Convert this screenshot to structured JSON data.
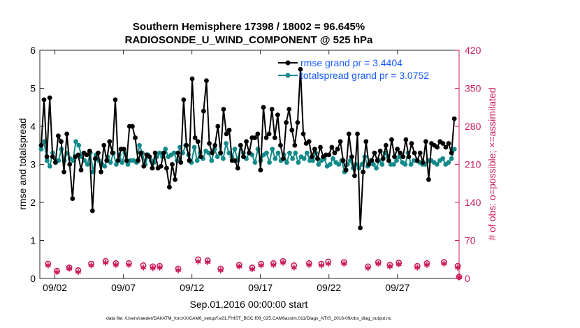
{
  "title_line1": "Southern Hemisphere 17398 / 18002 = 96.645%",
  "title_line2": "RADIOSONDE_U_WIND_COMPONENT @ 525 hPa",
  "xlabel": "Sep.01,2016 00:00:00 start",
  "ylabel_left": "rmse and totalspread",
  "ylabel_right": "# of obs: o=possible; ×=assimilated",
  "footer": "data file: /Users/raeder/DAI/ATM_forcXX/CAM6_setup/f.e21.FHIST_BGC.f09_025.CAM6assim.011/Diags_NTrS_2016-09/obs_diag_output.nc",
  "colors": {
    "rmse": "#000000",
    "spread": "#138a8a",
    "obs": "#cc1a5a",
    "legend_text": "#1a5cff"
  },
  "chart_data": {
    "type": "line",
    "x_unit": "days since Sep.01,2016 00:00:00",
    "xlim": [
      0.4,
      31.0
    ],
    "ylim_left": [
      0,
      6
    ],
    "ylim_right": [
      0,
      420
    ],
    "x_ticks": [
      {
        "value": 1.5,
        "label": "09/02"
      },
      {
        "value": 6.5,
        "label": "09/07"
      },
      {
        "value": 11.5,
        "label": "09/12"
      },
      {
        "value": 16.5,
        "label": "09/17"
      },
      {
        "value": 21.5,
        "label": "09/22"
      },
      {
        "value": 26.5,
        "label": "09/27"
      }
    ],
    "y_ticks_left": [
      "0",
      "1",
      "2",
      "3",
      "4",
      "5",
      "6"
    ],
    "y_ticks_right": [
      "0",
      "70",
      "140",
      "210",
      "280",
      "350",
      "420"
    ],
    "legend": [
      {
        "series": "rmse",
        "label": "rmse grand pr = 3.4404"
      },
      {
        "series": "spread",
        "label": "totalspread grand pr = 3.0752"
      }
    ],
    "series": [
      {
        "name": "rmse",
        "axis": "left",
        "marker": "filled-circle",
        "values": [
          3.5,
          4.7,
          3.2,
          4.75,
          3.2,
          3.05,
          3.75,
          3.6,
          2.8,
          3.8,
          3.0,
          2.1,
          3.2,
          3.25,
          2.85,
          3.3,
          3.25,
          3.35,
          1.78,
          3.15,
          3.3,
          2.8,
          3.5,
          3.1,
          3.6,
          3.3,
          4.7,
          3.1,
          3.4,
          3.4,
          3.1,
          4.0,
          4.0,
          3.7,
          3.1,
          3.3,
          2.95,
          3.25,
          3.2,
          2.9,
          3.3,
          2.9,
          2.95,
          3.3,
          2.9,
          2.4,
          3.0,
          2.6,
          3.3,
          3.05,
          4.7,
          3.5,
          3.1,
          5.25,
          3.7,
          3.6,
          3.2,
          4.4,
          5.2,
          3.55,
          3.3,
          3.5,
          4.0,
          3.3,
          4.45,
          3.8,
          3.9,
          3.1,
          3.1,
          2.9,
          3.5,
          3.2,
          3.6,
          3.3,
          3.7,
          3.7,
          3.8,
          2.85,
          4.5,
          3.7,
          3.8,
          4.45,
          3.7,
          4.3,
          3.5,
          3.15,
          4.1,
          4.45,
          3.9,
          3.5,
          4.1,
          5.5,
          3.8,
          3.55,
          3.6,
          3.2,
          3.4,
          3.15,
          3.45,
          3.2,
          3.25,
          3.25,
          3.45,
          3.3,
          3.4,
          3.6,
          3.1,
          2.85,
          3.8,
          3.2,
          2.7,
          3.8,
          1.33,
          2.8,
          3.6,
          3.0,
          3.1,
          3.3,
          3.1,
          3.35,
          3.15,
          3.5,
          3.1,
          3.65,
          3.2,
          3.4,
          3.3,
          3.2,
          3.65,
          3.2,
          3.55,
          3.3,
          3.1,
          3.3,
          3.05,
          3.6,
          2.6,
          3.55,
          3.5,
          3.45,
          3.6,
          3.55,
          3.45,
          3.55,
          3.3,
          4.2
        ]
      },
      {
        "name": "spread",
        "axis": "left",
        "marker": "filled-circle",
        "values": [
          3.4,
          3.6,
          3.1,
          2.95,
          3.3,
          3.05,
          3.1,
          3.4,
          3.1,
          3.3,
          3.15,
          3.1,
          3.6,
          3.5,
          3.2,
          3.1,
          3.0,
          3.3,
          2.8,
          3.25,
          3.1,
          3.0,
          2.95,
          3.2,
          3.05,
          3.3,
          3.0,
          3.25,
          3.05,
          3.3,
          3.0,
          3.1,
          3.1,
          3.05,
          3.5,
          3.3,
          3.0,
          3.25,
          3.1,
          3.05,
          3.2,
          3.3,
          3.2,
          3.4,
          3.2,
          3.25,
          3.3,
          3.1,
          3.45,
          3.3,
          3.5,
          3.25,
          3.05,
          3.45,
          3.1,
          3.3,
          3.15,
          3.35,
          3.3,
          3.1,
          3.4,
          3.2,
          3.3,
          3.15,
          3.55,
          3.3,
          3.2,
          3.4,
          3.1,
          3.5,
          3.3,
          3.15,
          3.3,
          3.25,
          3.05,
          3.4,
          3.1,
          3.25,
          3.3,
          3.05,
          3.4,
          3.15,
          3.3,
          3.1,
          3.25,
          3.05,
          3.3,
          3.15,
          3.3,
          3.05,
          3.2,
          3.15,
          3.3,
          3.1,
          3.1,
          3.3,
          3.0,
          3.1,
          3.15,
          2.95,
          3.0,
          3.15,
          3.05,
          3.0,
          3.1,
          2.8,
          3.0,
          3.1,
          2.9,
          3.0,
          2.9,
          3.0,
          3.2,
          2.95,
          3.1,
          3.0,
          2.9,
          3.1,
          3.0,
          3.3,
          3.2,
          3.0,
          3.0,
          3.1,
          3.2,
          3.05,
          3.0,
          3.3,
          3.0,
          3.1,
          3.1,
          3.05,
          3.0,
          3.0,
          3.1,
          3.1,
          3.05,
          3.0,
          3.1,
          3.15,
          3.0,
          3.05,
          3.15,
          3.4
        ]
      },
      {
        "name": "obs_possible",
        "axis": "right",
        "marker": "open-circle",
        "x": [
          1.0,
          1.65,
          2.55,
          3.2,
          4.15,
          5.2,
          5.95,
          6.9,
          7.95,
          8.65,
          9.15,
          10.5,
          11.95,
          12.65,
          13.6,
          14.95,
          15.9,
          16.55,
          17.45,
          18.15,
          18.95,
          20.05,
          20.95,
          21.45,
          22.6,
          24.35,
          25.1,
          25.95,
          26.6,
          27.95,
          28.65,
          29.9,
          30.9,
          31.0
        ],
        "values": [
          27,
          14,
          20,
          15,
          27,
          32,
          28,
          28,
          24,
          22,
          23,
          18,
          35,
          33,
          18,
          25,
          20,
          27,
          28,
          32,
          24,
          28,
          27,
          31,
          30,
          22,
          30,
          25,
          29,
          23,
          28,
          30,
          23,
          3
        ]
      },
      {
        "name": "obs_assimilated",
        "axis": "right",
        "marker": "asterisk",
        "x": [
          1.0,
          1.65,
          2.55,
          3.2,
          4.15,
          5.2,
          5.95,
          6.9,
          7.95,
          8.65,
          9.15,
          10.5,
          11.95,
          12.65,
          13.6,
          14.95,
          15.9,
          16.55,
          17.45,
          18.15,
          18.95,
          20.05,
          20.95,
          21.45,
          22.6,
          24.35,
          25.1,
          25.95,
          26.6,
          27.95,
          28.65,
          29.9,
          30.9,
          31.0
        ],
        "values": [
          24,
          12,
          18,
          12,
          24,
          29,
          25,
          25,
          20,
          19,
          20,
          15,
          31,
          30,
          15,
          22,
          17,
          24,
          25,
          29,
          20,
          25,
          24,
          27,
          27,
          19,
          27,
          22,
          26,
          20,
          25,
          27,
          20,
          2
        ]
      }
    ]
  }
}
